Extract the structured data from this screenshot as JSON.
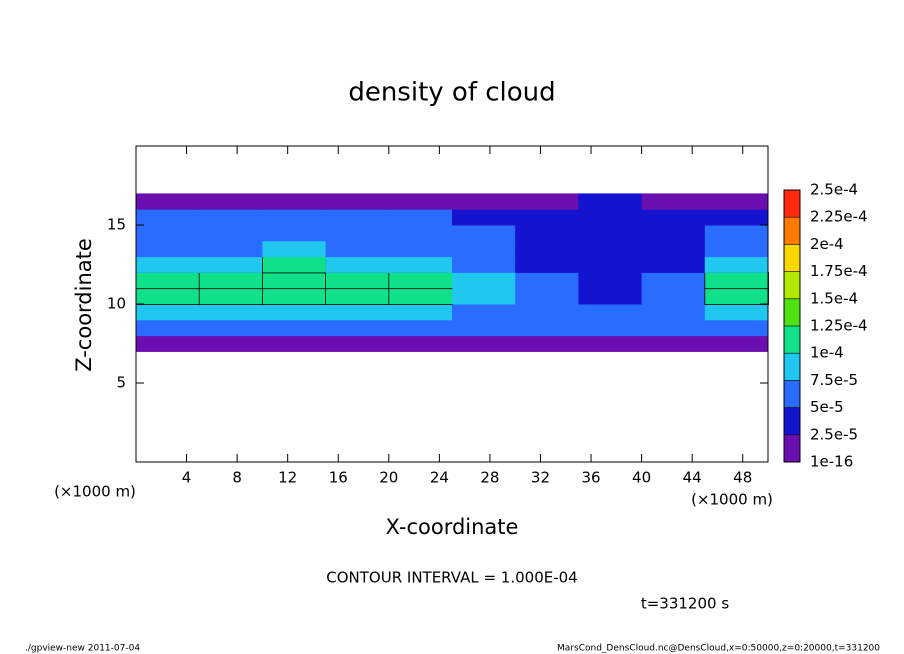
{
  "chart_data": {
    "type": "heatmap",
    "title": "density of cloud",
    "x_label": "X-coordinate",
    "y_label": "Z-coordinate",
    "x_unit_left": "(×1000 m)",
    "x_unit_right": "(×1000 m)",
    "contour_note": "CONTOUR INTERVAL = 1.000E-04",
    "time_note": "t=331200 s",
    "footer_left": "./gpview-new  2011-07-04",
    "footer_right": "MarsCond_DensCloud.nc@DensCloud,x=0:50000,z=0:20000,t=331200",
    "x": [
      2.5,
      7.5,
      12.5,
      17.5,
      22.5,
      27.5,
      32.5,
      37.5,
      42.5,
      47.5
    ],
    "y": [
      7.5,
      8.5,
      9.5,
      10.5,
      11.5,
      12.5,
      13.5,
      14.5,
      15.5,
      16.5
    ],
    "z": [
      [
        1.5e-05,
        1.5e-05,
        1.5e-05,
        1.5e-05,
        1.5e-05,
        1.5e-05,
        1.5e-05,
        1.5e-05,
        1.5e-05,
        1.5e-05
      ],
      [
        5.5e-05,
        5.5e-05,
        5.5e-05,
        5.5e-05,
        5.5e-05,
        5.5e-05,
        5.5e-05,
        5.5e-05,
        5.5e-05,
        5.5e-05
      ],
      [
        8.5e-05,
        8.5e-05,
        9e-05,
        8.5e-05,
        8e-05,
        7e-05,
        6e-05,
        5.5e-05,
        6e-05,
        8e-05
      ],
      [
        0.0001,
        0.00011,
        0.00011,
        0.000105,
        0.0001,
        9e-05,
        6e-05,
        4e-05,
        6e-05,
        0.0001
      ],
      [
        0.000105,
        0.00011,
        0.000115,
        0.00011,
        0.0001,
        9e-05,
        5e-05,
        3.5e-05,
        5e-05,
        0.000105
      ],
      [
        9e-05,
        9.5e-05,
        0.0001,
        9.5e-05,
        9e-05,
        7e-05,
        4e-05,
        3e-05,
        4.5e-05,
        9e-05
      ],
      [
        7e-05,
        7e-05,
        7.5e-05,
        7e-05,
        7e-05,
        6e-05,
        4e-05,
        3e-05,
        4e-05,
        6.5e-05
      ],
      [
        6e-05,
        6e-05,
        6e-05,
        6e-05,
        6e-05,
        5.5e-05,
        4e-05,
        3.5e-05,
        4e-05,
        5.5e-05
      ],
      [
        5e-05,
        5.5e-05,
        5.5e-05,
        5e-05,
        5e-05,
        4.5e-05,
        4e-05,
        3.5e-05,
        4e-05,
        4.5e-05
      ],
      [
        1.5e-05,
        1.5e-05,
        1.5e-05,
        1.5e-05,
        1.5e-05,
        1.5e-05,
        2e-05,
        2.5e-05,
        2e-05,
        2e-05
      ]
    ],
    "contour_level": 0.0001,
    "xlim": [
      0,
      50
    ],
    "ylim": [
      0,
      20
    ],
    "xticks": [
      4,
      8,
      12,
      16,
      20,
      24,
      28,
      32,
      36,
      40,
      44,
      48
    ],
    "yticks": [
      5,
      10,
      15
    ],
    "levels": [
      {
        "value": 1e-16,
        "label": "1e-16"
      },
      {
        "value": 2.5e-05,
        "label": "2.5e-5"
      },
      {
        "value": 5e-05,
        "label": "5e-5"
      },
      {
        "value": 7.5e-05,
        "label": "7.5e-5"
      },
      {
        "value": 0.0001,
        "label": "1e-4"
      },
      {
        "value": 0.000125,
        "label": "1.25e-4"
      },
      {
        "value": 0.00015,
        "label": "1.5e-4"
      },
      {
        "value": 0.000175,
        "label": "1.75e-4"
      },
      {
        "value": 0.0002,
        "label": "2e-4"
      },
      {
        "value": 0.000225,
        "label": "2.25e-4"
      },
      {
        "value": 0.00025,
        "label": "2.5e-4"
      }
    ],
    "colors": [
      "#6a0eb0",
      "#1414d0",
      "#2a6cff",
      "#20c8f0",
      "#10e08a",
      "#50e010",
      "#b0e800",
      "#f8d800",
      "#ff7a00",
      "#ff2a10"
    ]
  }
}
